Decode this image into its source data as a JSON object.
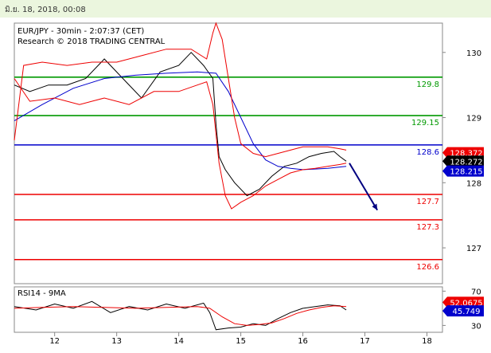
{
  "header": {
    "timestamp": "มิ.ย. 18, 2018, 00:08"
  },
  "chart_data": {
    "type": "line",
    "title": "EUR/JPY - 30min - 2:07:37 (CET)",
    "subtitle": "Research © 2018 TRADING CENTRAL",
    "main_panel": {
      "ylim": [
        126.45,
        130.45
      ],
      "y_ticks": [
        127,
        128,
        129,
        130
      ],
      "x_ticks": [
        {
          "label": "12",
          "x": 1
        },
        {
          "label": "13",
          "x": 2
        },
        {
          "label": "14",
          "x": 3
        },
        {
          "label": "15",
          "x": 4
        },
        {
          "label": "16",
          "x": 5
        },
        {
          "label": "17",
          "x": 6
        },
        {
          "label": "18",
          "x": 7
        }
      ],
      "xlim": [
        0.35,
        7.25
      ],
      "levels": [
        {
          "label": "129.8",
          "value": 129.62,
          "color": "#009900"
        },
        {
          "label": "129.15",
          "value": 129.03,
          "color": "#009900"
        },
        {
          "label": "128.6",
          "value": 128.58,
          "color": "#0000cc"
        },
        {
          "label": "127.7",
          "value": 127.82,
          "color": "#ee0000"
        },
        {
          "label": "127.3",
          "value": 127.43,
          "color": "#ee0000"
        },
        {
          "label": "126.6",
          "value": 126.82,
          "color": "#ee0000"
        }
      ],
      "price_tags": [
        {
          "label": "128.372",
          "value": 128.46,
          "color": "#ee0000"
        },
        {
          "label": "128.272",
          "value": 128.33,
          "color": "#000000"
        },
        {
          "label": "128.215",
          "value": 128.18,
          "color": "#0000cc"
        }
      ],
      "series": [
        {
          "name": "price",
          "color": "#000000",
          "x": [
            0.35,
            0.6,
            0.9,
            1.2,
            1.5,
            1.8,
            2.1,
            2.4,
            2.7,
            3.0,
            3.2,
            3.4,
            3.55,
            3.6,
            3.65,
            3.75,
            3.9,
            4.1,
            4.3,
            4.5,
            4.7,
            4.9,
            5.1,
            5.3,
            5.5,
            5.6,
            5.7
          ],
          "y": [
            129.5,
            129.4,
            129.5,
            129.5,
            129.6,
            129.9,
            129.6,
            129.3,
            129.7,
            129.8,
            130.0,
            129.8,
            129.6,
            128.9,
            128.4,
            128.2,
            128.0,
            127.8,
            127.9,
            128.1,
            128.25,
            128.3,
            128.4,
            128.45,
            128.48,
            128.4,
            128.33
          ]
        },
        {
          "name": "ma",
          "color": "#0000cc",
          "x": [
            0.35,
            0.8,
            1.3,
            1.8,
            2.3,
            2.8,
            3.3,
            3.6,
            3.8,
            4.0,
            4.2,
            4.4,
            4.6,
            4.8,
            5.0,
            5.2,
            5.4,
            5.7
          ],
          "y": [
            128.95,
            129.2,
            129.45,
            129.6,
            129.65,
            129.68,
            129.7,
            129.68,
            129.4,
            129.0,
            128.6,
            128.35,
            128.25,
            128.22,
            128.2,
            128.21,
            128.22,
            128.25
          ]
        },
        {
          "name": "bb_upper",
          "color": "#ee0000",
          "x": [
            0.35,
            0.5,
            0.8,
            1.2,
            1.6,
            2.0,
            2.4,
            2.8,
            3.2,
            3.45,
            3.55,
            3.6,
            3.7,
            3.8,
            3.9,
            4.0,
            4.2,
            4.4,
            4.6,
            4.8,
            5.0,
            5.2,
            5.4,
            5.6,
            5.7
          ],
          "y": [
            128.65,
            129.8,
            129.85,
            129.8,
            129.85,
            129.85,
            129.95,
            130.05,
            130.05,
            129.9,
            130.3,
            130.45,
            130.2,
            129.6,
            129.0,
            128.6,
            128.45,
            128.4,
            128.45,
            128.5,
            128.55,
            128.55,
            128.55,
            128.52,
            128.5
          ]
        },
        {
          "name": "bb_lower",
          "color": "#ee0000",
          "x": [
            0.35,
            0.6,
            1.0,
            1.4,
            1.8,
            2.2,
            2.6,
            3.0,
            3.3,
            3.45,
            3.55,
            3.65,
            3.75,
            3.85,
            4.0,
            4.2,
            4.4,
            4.6,
            4.8,
            5.0,
            5.2,
            5.4,
            5.6,
            5.7
          ],
          "y": [
            129.6,
            129.25,
            129.3,
            129.2,
            129.3,
            129.2,
            129.4,
            129.4,
            129.5,
            129.55,
            129.2,
            128.3,
            127.8,
            127.6,
            127.7,
            127.8,
            127.95,
            128.05,
            128.15,
            128.2,
            128.22,
            128.25,
            128.28,
            128.3
          ]
        }
      ],
      "projection": {
        "color": "#000080",
        "from": [
          5.75,
          128.3
        ],
        "to": [
          6.2,
          127.58
        ]
      }
    },
    "rsi_panel": {
      "label": "RSI14 - 9MA",
      "ylim": [
        22,
        75
      ],
      "y_ticks": [
        30,
        70
      ],
      "tags": [
        {
          "label": "52.0675",
          "value": 57,
          "color": "#ee0000"
        },
        {
          "label": "45.749",
          "value": 47,
          "color": "#0000cc"
        }
      ],
      "series": [
        {
          "name": "rsi",
          "color": "#000000",
          "x": [
            0.35,
            0.7,
            1.0,
            1.3,
            1.6,
            1.9,
            2.2,
            2.5,
            2.8,
            3.1,
            3.4,
            3.5,
            3.55,
            3.6,
            3.8,
            4.0,
            4.2,
            4.4,
            4.6,
            4.8,
            5.0,
            5.2,
            5.4,
            5.6,
            5.7
          ],
          "y": [
            52,
            48,
            55,
            50,
            58,
            45,
            52,
            48,
            55,
            50,
            56,
            45,
            35,
            25,
            27,
            28,
            32,
            30,
            38,
            45,
            50,
            52,
            54,
            53,
            48
          ]
        },
        {
          "name": "rsi_ma",
          "color": "#ee0000",
          "x": [
            0.35,
            0.8,
            1.3,
            1.8,
            2.3,
            2.8,
            3.3,
            3.5,
            3.7,
            3.9,
            4.1,
            4.3,
            4.5,
            4.7,
            4.9,
            5.1,
            5.3,
            5.5,
            5.7
          ],
          "y": [
            50,
            51,
            52,
            51,
            50,
            51,
            52,
            50,
            40,
            32,
            30,
            31,
            33,
            38,
            44,
            48,
            51,
            53,
            52
          ]
        }
      ]
    }
  }
}
